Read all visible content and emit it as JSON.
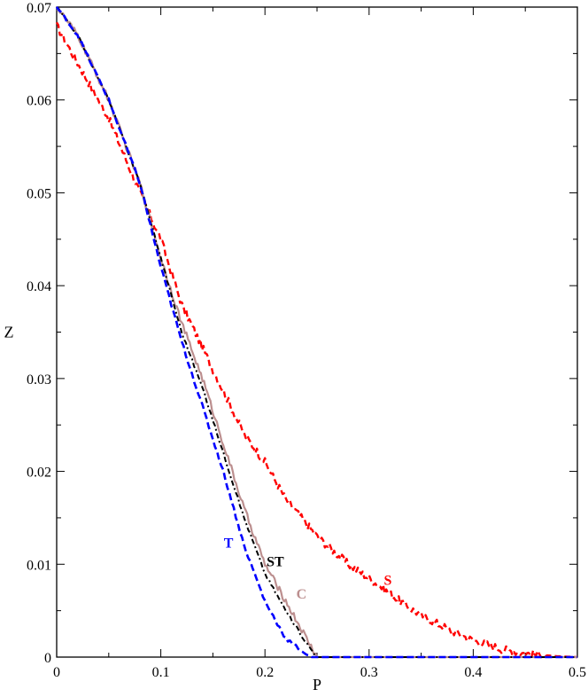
{
  "chart_data": {
    "type": "line",
    "xlabel": "P",
    "ylabel": "Z",
    "xlim": [
      0,
      0.5
    ],
    "ylim": [
      0,
      0.07
    ],
    "x_ticks": [
      "0",
      "0.1",
      "0.2",
      "0.3",
      "0.4",
      "0.5"
    ],
    "y_ticks": [
      "0",
      "0.01",
      "0.02",
      "0.03",
      "0.04",
      "0.05",
      "0.06",
      "0.07"
    ],
    "grid": false,
    "series": [
      {
        "name": "S",
        "color": "#ff0000",
        "style": "dashed-noisy",
        "x": [
          0,
          0.02,
          0.05,
          0.08,
          0.1,
          0.12,
          0.15,
          0.18,
          0.2,
          0.22,
          0.25,
          0.28,
          0.3,
          0.33,
          0.35,
          0.38,
          0.4,
          0.43,
          0.45,
          0.48,
          0.5
        ],
        "y": [
          0.068,
          0.064,
          0.058,
          0.05,
          0.045,
          0.038,
          0.031,
          0.024,
          0.021,
          0.017,
          0.013,
          0.01,
          0.0085,
          0.006,
          0.0045,
          0.0028,
          0.0018,
          0.0008,
          0.0004,
          0.0001,
          0.0
        ]
      },
      {
        "name": "C",
        "color": "#bc8f8f",
        "style": "solid-noisy",
        "x": [
          0,
          0.02,
          0.05,
          0.08,
          0.1,
          0.12,
          0.14,
          0.16,
          0.18,
          0.2,
          0.22,
          0.24,
          0.25,
          0.28,
          0.3,
          0.4,
          0.5
        ],
        "y": [
          0.07,
          0.067,
          0.06,
          0.051,
          0.043,
          0.036,
          0.03,
          0.023,
          0.016,
          0.01,
          0.006,
          0.002,
          0.0,
          0.0,
          0.0,
          0.0,
          0.0
        ]
      },
      {
        "name": "ST",
        "color": "#000000",
        "style": "dash-dot",
        "x": [
          0,
          0.02,
          0.05,
          0.08,
          0.1,
          0.12,
          0.14,
          0.16,
          0.18,
          0.2,
          0.22,
          0.24,
          0.25,
          0.28,
          0.3,
          0.4,
          0.5
        ],
        "y": [
          0.07,
          0.067,
          0.06,
          0.051,
          0.043,
          0.035,
          0.029,
          0.022,
          0.015,
          0.009,
          0.005,
          0.0015,
          0.0,
          0.0,
          0.0,
          0.0,
          0.0
        ]
      },
      {
        "name": "T",
        "color": "#0000ff",
        "style": "dashed",
        "x": [
          0,
          0.02,
          0.05,
          0.08,
          0.1,
          0.12,
          0.14,
          0.16,
          0.18,
          0.2,
          0.22,
          0.24,
          0.245,
          0.28,
          0.3,
          0.4,
          0.5
        ],
        "y": [
          0.07,
          0.067,
          0.06,
          0.051,
          0.042,
          0.034,
          0.027,
          0.02,
          0.012,
          0.006,
          0.002,
          0.0003,
          0.0,
          0.0,
          0.0,
          0.0,
          0.0
        ]
      }
    ],
    "annotations": [
      {
        "text": "T",
        "x": 0.165,
        "y": 0.0118,
        "color": "#0000ff"
      },
      {
        "text": "ST",
        "x": 0.21,
        "y": 0.0098,
        "color": "#000000"
      },
      {
        "text": "C",
        "x": 0.235,
        "y": 0.0063,
        "color": "#bc8f8f"
      },
      {
        "text": "S",
        "x": 0.318,
        "y": 0.0078,
        "color": "#ff0000"
      }
    ]
  }
}
